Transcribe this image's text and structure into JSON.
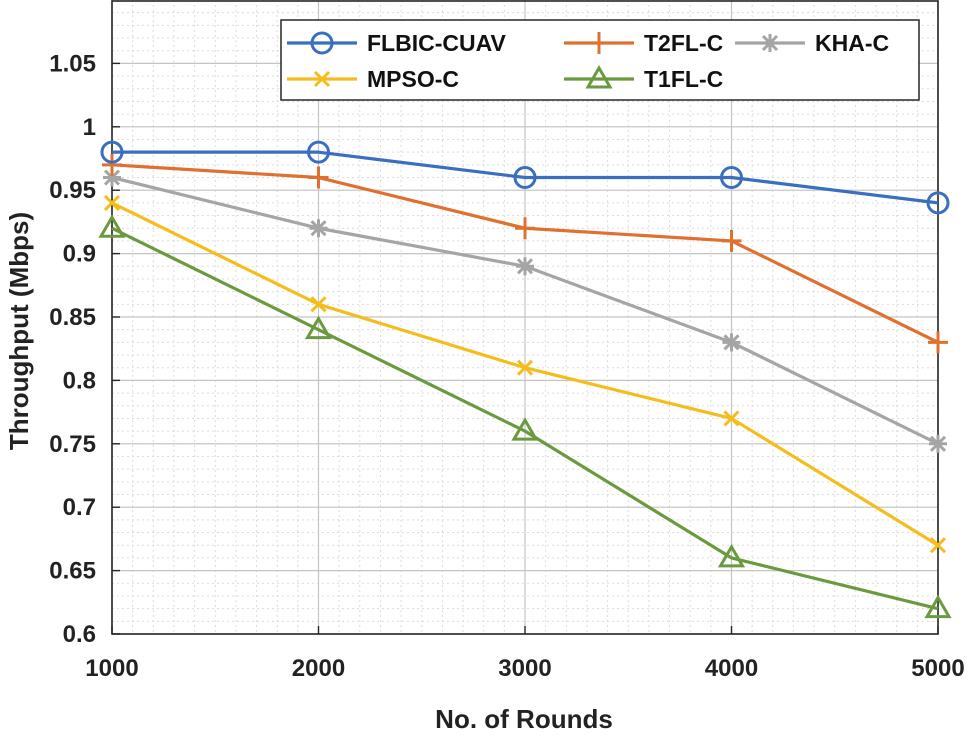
{
  "chart_data": {
    "type": "line",
    "title": "",
    "xlabel": "No. of Rounds",
    "ylabel": "Throughput (Mbps)",
    "x": [
      1000,
      2000,
      3000,
      4000,
      5000
    ],
    "xlim": [
      1000,
      5000
    ],
    "ylim": [
      0.6,
      1.1
    ],
    "x_ticks": [
      1000,
      2000,
      3000,
      4000,
      5000
    ],
    "x_tick_labels": [
      "1000",
      "2000",
      "3000",
      "4000",
      "5000"
    ],
    "y_ticks": [
      0.6,
      0.65,
      0.7,
      0.75,
      0.8,
      0.85,
      0.9,
      0.95,
      1.0,
      1.05
    ],
    "y_tick_labels": [
      "0.6",
      "0.65",
      "0.7",
      "0.75",
      "0.8",
      "0.85",
      "0.9",
      "0.95",
      "1",
      "1.05"
    ],
    "grid": true,
    "minor_grid": true,
    "legend_position": "top-right",
    "series": [
      {
        "name": "FLBIC-CUAV",
        "color": "#3a6fbf",
        "marker": "circle",
        "values": [
          0.98,
          0.98,
          0.96,
          0.96,
          0.94
        ]
      },
      {
        "name": "T2FL-C",
        "color": "#e07030",
        "marker": "plus",
        "values": [
          0.97,
          0.96,
          0.92,
          0.91,
          0.83
        ]
      },
      {
        "name": "KHA-C",
        "color": "#a5a5a5",
        "marker": "asterisk",
        "values": [
          0.96,
          0.92,
          0.89,
          0.83,
          0.75
        ]
      },
      {
        "name": "MPSO-C",
        "color": "#f5bd1c",
        "marker": "x",
        "values": [
          0.94,
          0.86,
          0.81,
          0.77,
          0.67
        ]
      },
      {
        "name": "T1FL-C",
        "color": "#6b9a3e",
        "marker": "triangle",
        "values": [
          0.92,
          0.84,
          0.76,
          0.66,
          0.62
        ]
      }
    ],
    "legend_order": [
      "FLBIC-CUAV",
      "T2FL-C",
      "KHA-C",
      "MPSO-C",
      "T1FL-C"
    ]
  }
}
